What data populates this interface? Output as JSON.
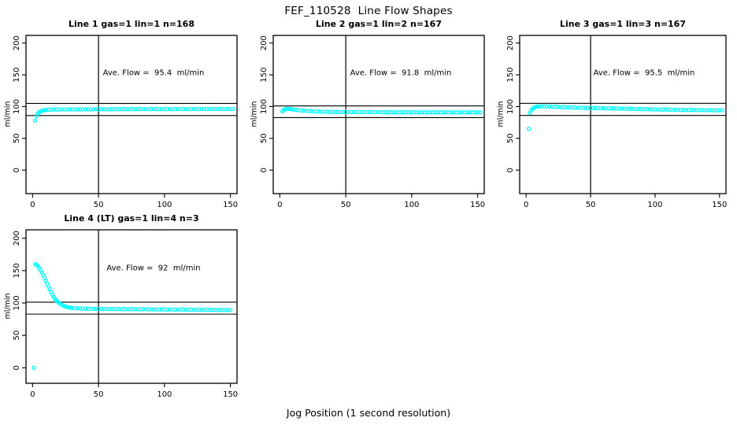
{
  "figure": {
    "title": "FEF_110528  Line Flow Shapes",
    "xlabel": "Jog Position (1 second resolution)",
    "ylabel": "ml/min",
    "point_color": "#00FFFF",
    "line_color": "#000000",
    "background": "#ffffff"
  },
  "chart_data": [
    {
      "type": "scatter",
      "title": "Line 1 gas=1 lin=1 n=168",
      "annotation": "Ave. Flow =  95.4  ml/min",
      "ave_flow": 95.4,
      "ylabel": "ml/min",
      "xticks": [
        0,
        50,
        100,
        150
      ],
      "yticks": [
        0,
        50,
        100,
        150,
        200
      ],
      "xlim": [
        -5,
        155
      ],
      "ylim": [
        -37,
        212
      ],
      "vline_x": 50,
      "ref_lines": [
        104.9,
        85.9
      ],
      "legend": "none",
      "grid": false,
      "points": [
        [
          2,
          78
        ],
        [
          3,
          85
        ],
        [
          4,
          89
        ],
        [
          5,
          91
        ],
        [
          6,
          92.5
        ],
        [
          7,
          93.5
        ],
        [
          8,
          94
        ],
        [
          9,
          94.3
        ],
        [
          10,
          94.6
        ],
        [
          12,
          94.9
        ],
        [
          14,
          95.1
        ],
        [
          16,
          95.2
        ],
        [
          18,
          95.3
        ],
        [
          20,
          95.4
        ],
        [
          22,
          95.5
        ],
        [
          24,
          95.5
        ],
        [
          26,
          95.5
        ],
        [
          28,
          95.5
        ],
        [
          30,
          95.5
        ],
        [
          32,
          95.5
        ],
        [
          34,
          95.5
        ],
        [
          36,
          95.5
        ],
        [
          38,
          95.5
        ],
        [
          40,
          95.5
        ],
        [
          42,
          95.7
        ],
        [
          44,
          95.7
        ],
        [
          46,
          95.7
        ],
        [
          48,
          95.7
        ],
        [
          50,
          95.7
        ],
        [
          52,
          95.7
        ],
        [
          54,
          95.7
        ],
        [
          56,
          95.7
        ],
        [
          58,
          95.7
        ],
        [
          60,
          95.7
        ],
        [
          62,
          95.9
        ],
        [
          64,
          95.9
        ],
        [
          66,
          95.9
        ],
        [
          68,
          95.9
        ],
        [
          70,
          95.9
        ],
        [
          72,
          95.9
        ],
        [
          74,
          95.9
        ],
        [
          76,
          95.9
        ],
        [
          78,
          95.9
        ],
        [
          80,
          95.9
        ],
        [
          82,
          96
        ],
        [
          84,
          96
        ],
        [
          86,
          96
        ],
        [
          88,
          96
        ],
        [
          90,
          96
        ],
        [
          92,
          96
        ],
        [
          94,
          96
        ],
        [
          96,
          96
        ],
        [
          98,
          96
        ],
        [
          100,
          96
        ],
        [
          102,
          96.1
        ],
        [
          104,
          96.1
        ],
        [
          106,
          96.1
        ],
        [
          108,
          96.1
        ],
        [
          110,
          96.1
        ],
        [
          112,
          96.1
        ],
        [
          114,
          96.1
        ],
        [
          116,
          96.1
        ],
        [
          118,
          96.1
        ],
        [
          120,
          96.1
        ],
        [
          122,
          96.2
        ],
        [
          124,
          96.2
        ],
        [
          126,
          96.2
        ],
        [
          128,
          96.2
        ],
        [
          130,
          96.2
        ],
        [
          132,
          96.2
        ],
        [
          134,
          96.2
        ],
        [
          136,
          96.2
        ],
        [
          138,
          96.2
        ],
        [
          140,
          96.2
        ],
        [
          142,
          96.2
        ],
        [
          144,
          96.2
        ],
        [
          146,
          96.2
        ],
        [
          148,
          96.2
        ],
        [
          150,
          96.2
        ],
        [
          152,
          96.2
        ]
      ]
    },
    {
      "type": "scatter",
      "title": "Line 2 gas=1 lin=2 n=167",
      "annotation": "Ave. Flow =  91.8  ml/min",
      "ave_flow": 91.8,
      "ylabel": "ml/min",
      "xticks": [
        0,
        50,
        100,
        150
      ],
      "yticks": [
        0,
        50,
        100,
        150,
        200
      ],
      "xlim": [
        -5,
        155
      ],
      "ylim": [
        -37,
        212
      ],
      "vline_x": 50,
      "ref_lines": [
        101.0,
        82.6
      ],
      "legend": "none",
      "grid": false,
      "points": [
        [
          2,
          92.5
        ],
        [
          3,
          94.5
        ],
        [
          4,
          95.8
        ],
        [
          5,
          96.4
        ],
        [
          6,
          96.5
        ],
        [
          7,
          96.3
        ],
        [
          8,
          96
        ],
        [
          9,
          95.7
        ],
        [
          10,
          95.4
        ],
        [
          12,
          94.9
        ],
        [
          14,
          94.4
        ],
        [
          16,
          94
        ],
        [
          18,
          93.6
        ],
        [
          20,
          93.3
        ],
        [
          22,
          93
        ],
        [
          24,
          92.7
        ],
        [
          26,
          92.5
        ],
        [
          28,
          92.3
        ],
        [
          30,
          92.1
        ],
        [
          32,
          92
        ],
        [
          34,
          91.9
        ],
        [
          36,
          91.8
        ],
        [
          38,
          91.7
        ],
        [
          40,
          91.6
        ],
        [
          42,
          91.4
        ],
        [
          44,
          91.4
        ],
        [
          46,
          91.4
        ],
        [
          48,
          91.4
        ],
        [
          50,
          91.4
        ],
        [
          52,
          91.4
        ],
        [
          54,
          91.4
        ],
        [
          56,
          91.4
        ],
        [
          58,
          91.4
        ],
        [
          60,
          91.4
        ],
        [
          62,
          91.2
        ],
        [
          64,
          91.2
        ],
        [
          66,
          91.2
        ],
        [
          68,
          91.2
        ],
        [
          70,
          91.2
        ],
        [
          72,
          91.2
        ],
        [
          74,
          91.2
        ],
        [
          76,
          91.2
        ],
        [
          78,
          91.2
        ],
        [
          80,
          91.2
        ],
        [
          82,
          91
        ],
        [
          84,
          91
        ],
        [
          86,
          91
        ],
        [
          88,
          91
        ],
        [
          90,
          91
        ],
        [
          92,
          91
        ],
        [
          94,
          91
        ],
        [
          96,
          91
        ],
        [
          98,
          91
        ],
        [
          100,
          91
        ],
        [
          102,
          90.9
        ],
        [
          104,
          90.9
        ],
        [
          106,
          90.9
        ],
        [
          108,
          90.9
        ],
        [
          110,
          90.9
        ],
        [
          112,
          90.9
        ],
        [
          114,
          90.9
        ],
        [
          116,
          90.9
        ],
        [
          118,
          90.9
        ],
        [
          120,
          90.9
        ],
        [
          122,
          90.9
        ],
        [
          124,
          90.9
        ],
        [
          126,
          90.8
        ],
        [
          128,
          90.8
        ],
        [
          130,
          90.8
        ],
        [
          132,
          90.8
        ],
        [
          134,
          90.8
        ],
        [
          136,
          90.8
        ],
        [
          138,
          90.8
        ],
        [
          140,
          90.8
        ],
        [
          142,
          90.8
        ],
        [
          144,
          90.8
        ],
        [
          146,
          90.8
        ],
        [
          148,
          90.8
        ],
        [
          150,
          90.8
        ],
        [
          152,
          90.8
        ]
      ]
    },
    {
      "type": "scatter",
      "title": "Line 3 gas=1 lin=3 n=167",
      "annotation": "Ave. Flow =  95.5  ml/min",
      "ave_flow": 95.5,
      "ylabel": "ml/min",
      "xticks": [
        0,
        50,
        100,
        150
      ],
      "yticks": [
        0,
        50,
        100,
        150,
        200
      ],
      "xlim": [
        -5,
        155
      ],
      "ylim": [
        -37,
        212
      ],
      "vline_x": 50,
      "ref_lines": [
        105.1,
        86.0
      ],
      "legend": "none",
      "grid": false,
      "points": [
        [
          2,
          65
        ],
        [
          3,
          90
        ],
        [
          4,
          94
        ],
        [
          5,
          96.5
        ],
        [
          6,
          98
        ],
        [
          7,
          99
        ],
        [
          8,
          99.6
        ],
        [
          9,
          100
        ],
        [
          10,
          100.2
        ],
        [
          12,
          100.4
        ],
        [
          14,
          100.4
        ],
        [
          16,
          100.3
        ],
        [
          18,
          100.1
        ],
        [
          20,
          100
        ],
        [
          22,
          99.8
        ],
        [
          24,
          99.6
        ],
        [
          26,
          99.4
        ],
        [
          28,
          99.2
        ],
        [
          30,
          99
        ],
        [
          32,
          98.8
        ],
        [
          34,
          98.7
        ],
        [
          36,
          98.5
        ],
        [
          38,
          98.4
        ],
        [
          40,
          98.2
        ],
        [
          42,
          98
        ],
        [
          44,
          98
        ],
        [
          46,
          98
        ],
        [
          48,
          97.9
        ],
        [
          50,
          97.8
        ],
        [
          52,
          97.7
        ],
        [
          54,
          97.6
        ],
        [
          56,
          97.5
        ],
        [
          58,
          97.5
        ],
        [
          60,
          97.4
        ],
        [
          62,
          97.3
        ],
        [
          64,
          97.2
        ],
        [
          66,
          97.1
        ],
        [
          68,
          97.1
        ],
        [
          70,
          97
        ],
        [
          72,
          96.9
        ],
        [
          74,
          96.8
        ],
        [
          76,
          96.7
        ],
        [
          78,
          96.6
        ],
        [
          80,
          96.5
        ],
        [
          82,
          96.4
        ],
        [
          84,
          96.3
        ],
        [
          86,
          96.2
        ],
        [
          88,
          96.1
        ],
        [
          90,
          96
        ],
        [
          92,
          95.9
        ],
        [
          94,
          95.8
        ],
        [
          96,
          95.7
        ],
        [
          98,
          95.6
        ],
        [
          100,
          95.5
        ],
        [
          102,
          95.4
        ],
        [
          104,
          95.4
        ],
        [
          106,
          95.3
        ],
        [
          108,
          95.2
        ],
        [
          110,
          95.1
        ],
        [
          112,
          95
        ],
        [
          114,
          95
        ],
        [
          116,
          94.9
        ],
        [
          118,
          94.8
        ],
        [
          120,
          94.8
        ],
        [
          122,
          94.7
        ],
        [
          124,
          94.7
        ],
        [
          126,
          94.6
        ],
        [
          128,
          94.6
        ],
        [
          130,
          94.5
        ],
        [
          132,
          94.5
        ],
        [
          134,
          94.4
        ],
        [
          136,
          94.4
        ],
        [
          138,
          94.4
        ],
        [
          140,
          94.3
        ],
        [
          142,
          94.3
        ],
        [
          144,
          94.3
        ],
        [
          146,
          94.2
        ],
        [
          148,
          94.2
        ],
        [
          150,
          94.2
        ],
        [
          152,
          94.2
        ]
      ]
    },
    {
      "type": "scatter",
      "title": "Line 4 (LT) gas=1 lin=4 n=3",
      "annotation": "Ave. Flow =  92  ml/min",
      "ave_flow": 92,
      "ylabel": "ml/min",
      "xticks": [
        0,
        50,
        100,
        150
      ],
      "yticks": [
        0,
        50,
        100,
        150,
        200
      ],
      "xlim": [
        -5,
        155
      ],
      "ylim": [
        -24,
        213
      ],
      "vline_x": 50,
      "ref_lines": [
        101.2,
        82.8
      ],
      "legend": "none",
      "grid": false,
      "points": [
        [
          1,
          0
        ],
        [
          2,
          160
        ],
        [
          3,
          159
        ],
        [
          4,
          157
        ],
        [
          5,
          154
        ],
        [
          6,
          150.5
        ],
        [
          7,
          147
        ],
        [
          8,
          143
        ],
        [
          9,
          139
        ],
        [
          10,
          134.5
        ],
        [
          11,
          130
        ],
        [
          12,
          125.5
        ],
        [
          13,
          121
        ],
        [
          14,
          117
        ],
        [
          15,
          113
        ],
        [
          16,
          109.5
        ],
        [
          17,
          106.5
        ],
        [
          18,
          104
        ],
        [
          19,
          102
        ],
        [
          20,
          100.2
        ],
        [
          21,
          98.7
        ],
        [
          22,
          97.4
        ],
        [
          23,
          96.3
        ],
        [
          24,
          95.4
        ],
        [
          25,
          94.6
        ],
        [
          26,
          94
        ],
        [
          27,
          93.4
        ],
        [
          28,
          93
        ],
        [
          29,
          92.6
        ],
        [
          30,
          92.3
        ],
        [
          32,
          92
        ],
        [
          34,
          91.8
        ],
        [
          36,
          91.6
        ],
        [
          38,
          91.4
        ],
        [
          40,
          91.3
        ],
        [
          42,
          91.1
        ],
        [
          44,
          91.1
        ],
        [
          46,
          91
        ],
        [
          48,
          91
        ],
        [
          50,
          90.9
        ],
        [
          52,
          90.9
        ],
        [
          54,
          90.8
        ],
        [
          56,
          90.8
        ],
        [
          58,
          90.7
        ],
        [
          60,
          90.7
        ],
        [
          62,
          90.6
        ],
        [
          64,
          90.6
        ],
        [
          66,
          90.5
        ],
        [
          68,
          90.5
        ],
        [
          70,
          90.5
        ],
        [
          72,
          90.4
        ],
        [
          74,
          90.4
        ],
        [
          76,
          90.4
        ],
        [
          78,
          90.3
        ],
        [
          80,
          90.3
        ],
        [
          82,
          90.3
        ],
        [
          84,
          90.2
        ],
        [
          86,
          90.2
        ],
        [
          88,
          90.2
        ],
        [
          90,
          90.1
        ],
        [
          92,
          90.1
        ],
        [
          94,
          90.1
        ],
        [
          96,
          90
        ],
        [
          98,
          90
        ],
        [
          100,
          90
        ],
        [
          102,
          89.9
        ],
        [
          104,
          89.9
        ],
        [
          106,
          89.9
        ],
        [
          108,
          89.8
        ],
        [
          110,
          89.8
        ],
        [
          112,
          89.8
        ],
        [
          114,
          89.7
        ],
        [
          116,
          89.7
        ],
        [
          118,
          89.7
        ],
        [
          120,
          89.6
        ],
        [
          122,
          89.6
        ],
        [
          124,
          89.6
        ],
        [
          126,
          89.5
        ],
        [
          128,
          89.5
        ],
        [
          130,
          89.5
        ],
        [
          132,
          89.4
        ],
        [
          134,
          89.4
        ],
        [
          136,
          89.4
        ],
        [
          138,
          89.4
        ],
        [
          140,
          89.3
        ],
        [
          142,
          89.3
        ],
        [
          144,
          89.3
        ],
        [
          146,
          89.3
        ],
        [
          148,
          89.2
        ],
        [
          150,
          89.2
        ]
      ]
    }
  ]
}
